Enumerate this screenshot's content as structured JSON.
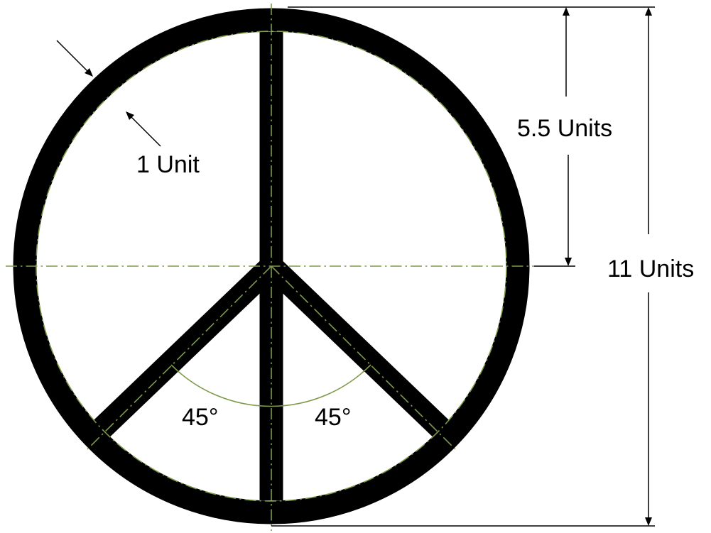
{
  "labels": {
    "ring_width": "1 Unit",
    "radius": "5.5 Units",
    "diameter": "11 Units",
    "angle_left": "45°",
    "angle_right": "45°"
  },
  "colors": {
    "symbol": "#000000",
    "center_line": "#7d9a4a",
    "background": "#ffffff"
  }
}
